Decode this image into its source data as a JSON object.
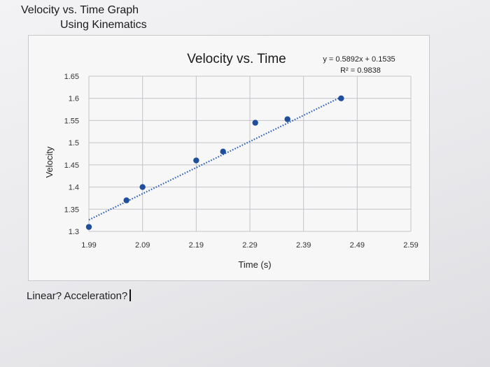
{
  "heading": {
    "line1": "Velocity vs. Time Graph",
    "line2": "Using Kinematics"
  },
  "prompt": {
    "text": "Linear? Acceleration?"
  },
  "colors": {
    "points": "#1f4e9c",
    "trendline": "#2e62b8",
    "grid": "#c4c4c8",
    "plot_background": "#f7f7f8"
  },
  "chart_data": {
    "type": "scatter",
    "title": "Velocity vs. Time",
    "xlabel": "Time (s)",
    "ylabel": "Velocity",
    "xlim": [
      1.99,
      2.59
    ],
    "ylim": [
      1.3,
      1.65
    ],
    "x_ticks": [
      "1.99",
      "2.09",
      "2.19",
      "2.29",
      "2.39",
      "2.49",
      "2.59"
    ],
    "y_ticks": [
      "1.3",
      "1.35",
      "1.4",
      "1.45",
      "1.5",
      "1.55",
      "1.6",
      "1.65"
    ],
    "grid": true,
    "series": [
      {
        "points": [
          {
            "x": 1.99,
            "y": 1.31
          },
          {
            "x": 2.06,
            "y": 1.37
          },
          {
            "x": 2.09,
            "y": 1.4
          },
          {
            "x": 2.19,
            "y": 1.46
          },
          {
            "x": 2.24,
            "y": 1.48
          },
          {
            "x": 2.3,
            "y": 1.545
          },
          {
            "x": 2.36,
            "y": 1.553
          },
          {
            "x": 2.46,
            "y": 1.6
          }
        ]
      }
    ],
    "trendline": {
      "type": "linear",
      "slope": 0.5892,
      "intercept": 0.1535,
      "style": "dotted",
      "equation": "y = 0.5892x + 0.1535",
      "r_squared": "R² = 0.9838"
    }
  }
}
